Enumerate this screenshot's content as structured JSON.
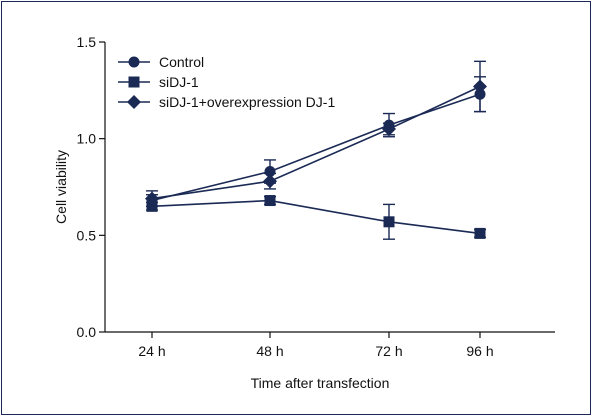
{
  "colors": {
    "series": "#1b2a55",
    "axis": "#111111"
  },
  "chart_data": {
    "type": "line",
    "title": "",
    "xlabel": "Time after transfection",
    "ylabel": "Cell viability",
    "categories": [
      "24 h",
      "48 h",
      "72 h",
      "96 h"
    ],
    "ylim": [
      0,
      1.5
    ],
    "yticks": [
      "0.0",
      "0.5",
      "1.0",
      "1.5"
    ],
    "grid": false,
    "legend_position": "top-left",
    "series": [
      {
        "name": "Control",
        "marker": "circle",
        "values": [
          0.68,
          0.83,
          1.07,
          1.23
        ],
        "errors": [
          0.03,
          0.06,
          0.06,
          0.09
        ]
      },
      {
        "name": "siDJ-1",
        "marker": "square",
        "values": [
          0.65,
          0.68,
          0.57,
          0.51
        ],
        "errors": [
          0.02,
          0.02,
          0.09,
          0.02
        ]
      },
      {
        "name": "siDJ-1+overexpression DJ-1",
        "marker": "diamond",
        "values": [
          0.69,
          0.78,
          1.05,
          1.27
        ],
        "errors": [
          0.04,
          0.04,
          0.03,
          0.13
        ]
      }
    ]
  }
}
